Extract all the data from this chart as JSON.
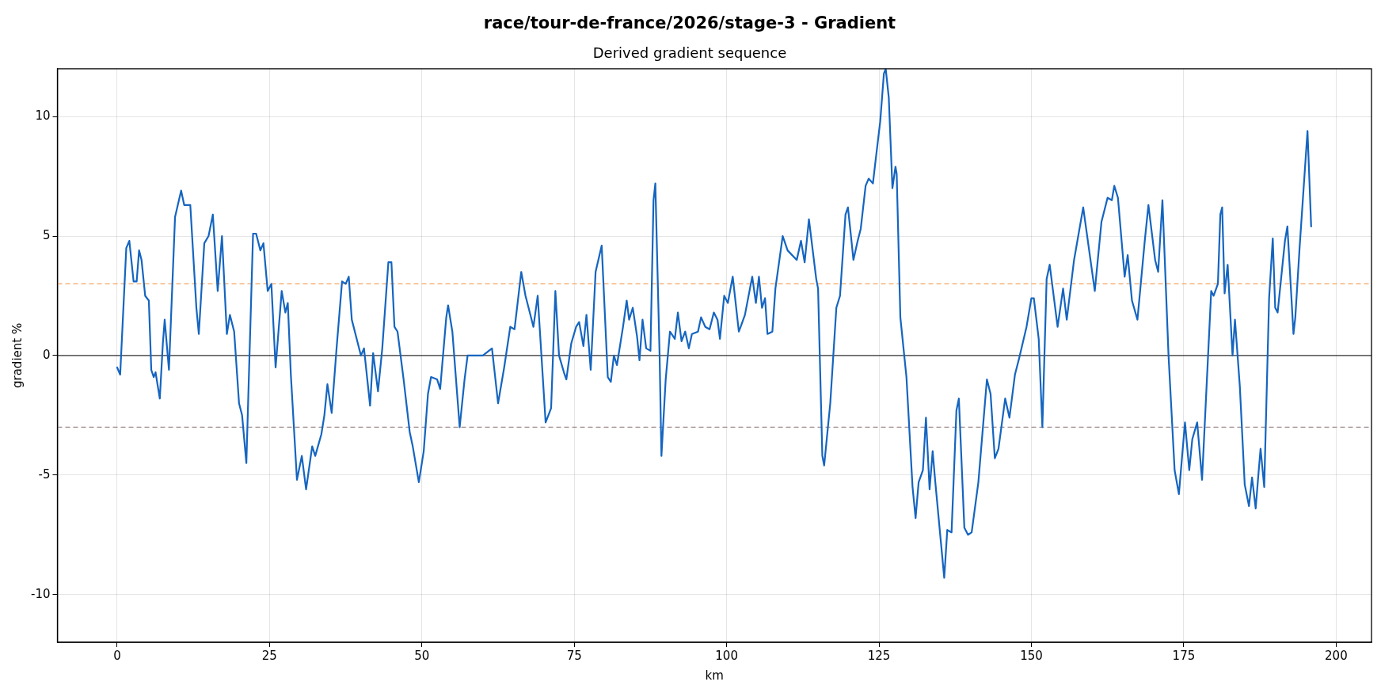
{
  "chart_data": {
    "type": "line",
    "title": "race/tour-de-france/2026/stage-3 - Gradient",
    "subtitle": "Derived gradient sequence",
    "xlabel": "km",
    "ylabel": "gradient %",
    "x": [
      0,
      0.5,
      1.5,
      2,
      2.7,
      3.2,
      3.6,
      4,
      4.6,
      5.2,
      5.6,
      6,
      6.3,
      7,
      7.5,
      7.8,
      8.5,
      9.5,
      10.5,
      11,
      12,
      13,
      13.4,
      14.3,
      15,
      15.7,
      16.5,
      17.2,
      18,
      18.5,
      19.2,
      20,
      20.5,
      21.2,
      22.3,
      22.8,
      23.5,
      24,
      24.7,
      25.3,
      26,
      27,
      27.6,
      28,
      28.5,
      29.5,
      30.3,
      31,
      32,
      32.5,
      33.5,
      34,
      34.5,
      35.2,
      36,
      36.9,
      37.5,
      38,
      38.5,
      39.2,
      40,
      40.5,
      41.5,
      42,
      42.8,
      43.5,
      44.5,
      45,
      45.5,
      46,
      47,
      48,
      48.5,
      49.5,
      50.3,
      51,
      51.5,
      52.5,
      53,
      54,
      54.3,
      55,
      56.2,
      57,
      57.5,
      60,
      61.5,
      62.5,
      63.5,
      64.5,
      65.2,
      66.3,
      67,
      67.7,
      68.3,
      69,
      70.3,
      71.2,
      71.9,
      72.5,
      73.3,
      73.7,
      74.5,
      75.3,
      75.8,
      76.5,
      77,
      77.7,
      78.5,
      79.5,
      80.5,
      81,
      81.5,
      82,
      83,
      83.6,
      84,
      84.6,
      85.3,
      85.7,
      86.2,
      86.8,
      87.5,
      88,
      88.3,
      89,
      89.3,
      90,
      90.7,
      91.5,
      92,
      92.6,
      93.2,
      93.8,
      94.3,
      95.3,
      95.8,
      96.5,
      97.2,
      97.9,
      98.5,
      98.9,
      99.6,
      100.2,
      101,
      102,
      102.3,
      103,
      104.2,
      104.8,
      105.3,
      105.8,
      106.3,
      106.7,
      107.5,
      108,
      109.2,
      110,
      111.5,
      112.2,
      112.8,
      113.5,
      114.7,
      115,
      115.7,
      116,
      117,
      118,
      118.6,
      119.5,
      119.9,
      120.4,
      120.8,
      121.5,
      122,
      122.8,
      123.3,
      124,
      124.5,
      125.2,
      125.8,
      126.1,
      126.6,
      127.2,
      127.7,
      127.9,
      128.5,
      129.5,
      130.5,
      131,
      131.5,
      132.2,
      132.7,
      133.3,
      133.8,
      134.2,
      135,
      135.7,
      136.2,
      136.9,
      137.7,
      138.1,
      139,
      139.6,
      140.2,
      141.3,
      142.7,
      143.3,
      144,
      144.6,
      145.7,
      146.4,
      147.3,
      148,
      149.2,
      150,
      150.4,
      151.2,
      151.8,
      152.5,
      153,
      154.3,
      155.2,
      155.8,
      157,
      158.5,
      160.4,
      161.5,
      162.5,
      163.2,
      163.6,
      164.2,
      165.3,
      165.8,
      166.5,
      167.4,
      168.6,
      169.2,
      170.3,
      170.8,
      171.5,
      172.5,
      173.5,
      174.2,
      175.2,
      175.9,
      176.4,
      177.2,
      178,
      179.5,
      179.9,
      180.6,
      181,
      181.3,
      181.7,
      182.2,
      183,
      183.4,
      184.2,
      185,
      185.7,
      186.2,
      186.8,
      187.3,
      187.6,
      188.2,
      189,
      189.6,
      190,
      190.4,
      191.6,
      192,
      193,
      193.3,
      194,
      195.3,
      195.9
    ],
    "series": [
      {
        "color": "#1565c0",
        "values": [
          -0.5,
          -0.8,
          4.5,
          4.8,
          3.1,
          3.1,
          4.4,
          4.0,
          2.5,
          2.3,
          -0.6,
          -0.9,
          -0.7,
          -1.8,
          0.5,
          1.5,
          -0.6,
          5.8,
          6.9,
          6.3,
          6.3,
          2,
          0.9,
          4.7,
          5,
          5.9,
          2.7,
          5,
          0.9,
          1.7,
          1.0,
          -2,
          -2.5,
          -4.5,
          5.1,
          5.1,
          4.4,
          4.7,
          2.7,
          3,
          -0.5,
          2.7,
          1.8,
          2.2,
          -0.8,
          -5.2,
          -4.2,
          -5.6,
          -3.8,
          -4.2,
          -3.3,
          -2.5,
          -1.2,
          -2.4,
          0.3,
          3.1,
          3,
          3.3,
          1.5,
          0.8,
          0,
          0.3,
          -2.1,
          0.1,
          -1.5,
          0.3,
          3.9,
          3.9,
          1.2,
          1,
          -1,
          -3.2,
          -3.8,
          -5.3,
          -4,
          -1.6,
          -0.9,
          -1.0,
          -1.4,
          1.6,
          2.1,
          1,
          -3,
          -1,
          0,
          0,
          0.3,
          -2.0,
          -0.5,
          1.2,
          1.1,
          3.5,
          2.5,
          1.8,
          1.2,
          2.5,
          -2.8,
          -2.2,
          2.7,
          0,
          -0.7,
          -1.0,
          0.5,
          1.2,
          1.4,
          0.4,
          1.7,
          -0.6,
          3.5,
          4.6,
          -0.9,
          -1.1,
          0,
          -0.4,
          1.2,
          2.3,
          1.5,
          2,
          0.8,
          -0.2,
          1.5,
          0.3,
          0.2,
          6.5,
          7.2,
          0,
          -4.2,
          -1,
          1,
          0.7,
          1.8,
          0.6,
          1,
          0.3,
          0.9,
          1,
          1.6,
          1.2,
          1.1,
          1.8,
          1.5,
          0.7,
          2.5,
          2.2,
          3.3,
          1,
          1.2,
          1.7,
          3.3,
          2.2,
          3.3,
          2.0,
          2.4,
          0.9,
          1.0,
          2.8,
          5.0,
          4.4,
          4.0,
          4.8,
          3.9,
          5.7,
          3.2,
          2.8,
          -4.2,
          -4.6,
          -2,
          2.0,
          2.5,
          5.9,
          6.2,
          5.0,
          4.0,
          4.8,
          5.3,
          7.1,
          7.4,
          7.2,
          8.3,
          9.8,
          11.8,
          12,
          10.8,
          7.0,
          7.9,
          7.6,
          1.6,
          -0.9,
          -5.5,
          -6.8,
          -5.3,
          -4.8,
          -2.6,
          -5.6,
          -4.0,
          -5.2,
          -7.4,
          -9.3,
          -7.3,
          -7.4,
          -2.3,
          -1.8,
          -7.2,
          -7.5,
          -7.4,
          -5.3,
          -1.0,
          -1.6,
          -4.3,
          -3.9,
          -1.8,
          -2.6,
          -0.8,
          -0.1,
          1.2,
          2.4,
          2.4,
          0.7,
          -3.0,
          3.2,
          3.8,
          1.2,
          2.8,
          1.5,
          4,
          6.2,
          2.7,
          5.6,
          6.6,
          6.5,
          7.1,
          6.6,
          3.3,
          4.2,
          2.3,
          1.5,
          4.8,
          6.3,
          4,
          3.5,
          6.5,
          0,
          -4.8,
          -5.8,
          -2.8,
          -4.8,
          -3.5,
          -2.8,
          -5.2,
          2.7,
          2.5,
          3,
          5.9,
          6.2,
          2.6,
          3.8,
          0,
          1.5,
          -1.3,
          -5.4,
          -6.3,
          -5.1,
          -6.4,
          -4.8,
          -3.9,
          -5.5,
          2.4,
          4.9,
          2,
          1.8,
          4.8,
          5.4,
          0.9,
          1.6,
          4.5,
          9.4,
          5.4
        ]
      }
    ],
    "xlim": [
      -9.8,
      205.8
    ],
    "ylim": [
      -12,
      12
    ],
    "xticks": [
      0,
      25,
      50,
      75,
      100,
      125,
      150,
      175,
      200
    ],
    "yticks": [
      -10,
      -5,
      0,
      5,
      10
    ],
    "ref_lines": [
      {
        "axis": "y",
        "value": 0,
        "color": "#333333",
        "line_style": "solid"
      },
      {
        "axis": "y",
        "value": 3,
        "color": "#f4a460",
        "line_style": "dashed"
      },
      {
        "axis": "y",
        "value": -3,
        "color": "#a08c8c",
        "line_style": "dashed"
      }
    ],
    "grid": true,
    "legend": false,
    "marker": "none",
    "line_style": "solid"
  }
}
